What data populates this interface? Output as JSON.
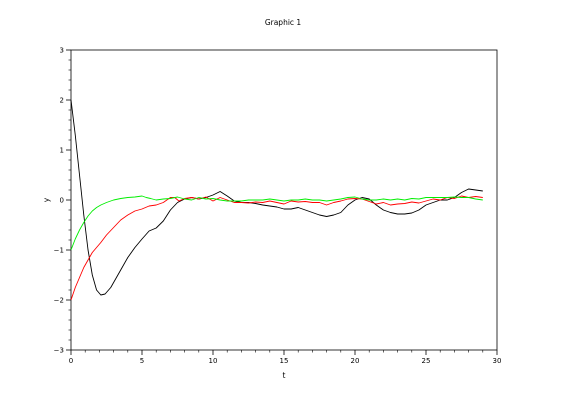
{
  "chart_data": {
    "type": "line",
    "title": "Graphic 1",
    "xlabel": "t",
    "ylabel": "y",
    "xlim": [
      0,
      30
    ],
    "ylim": [
      -3,
      3
    ],
    "xticks": [
      "0",
      "5",
      "10",
      "15",
      "20",
      "25",
      "30"
    ],
    "yticks": [
      "-3",
      "-2",
      "-1",
      "0",
      "1",
      "2",
      "3"
    ],
    "grid": false,
    "legend": "none",
    "series": [
      {
        "color": "#000000",
        "points": [
          [
            0,
            2.0
          ],
          [
            0.3,
            1.3
          ],
          [
            0.6,
            0.5
          ],
          [
            0.9,
            -0.3
          ],
          [
            1.2,
            -1.0
          ],
          [
            1.5,
            -1.5
          ],
          [
            1.8,
            -1.8
          ],
          [
            2.1,
            -1.9
          ],
          [
            2.4,
            -1.88
          ],
          [
            2.8,
            -1.75
          ],
          [
            3.2,
            -1.55
          ],
          [
            3.6,
            -1.35
          ],
          [
            4.0,
            -1.15
          ],
          [
            4.5,
            -0.95
          ],
          [
            5.0,
            -0.78
          ],
          [
            5.5,
            -0.62
          ],
          [
            6.0,
            -0.56
          ],
          [
            6.5,
            -0.42
          ],
          [
            7.0,
            -0.2
          ],
          [
            7.5,
            -0.05
          ],
          [
            8.0,
            0.02
          ],
          [
            8.5,
            0.05
          ],
          [
            9.0,
            0.02
          ],
          [
            9.5,
            0.05
          ],
          [
            10.0,
            0.1
          ],
          [
            10.5,
            0.17
          ],
          [
            11.0,
            0.08
          ],
          [
            11.5,
            -0.02
          ],
          [
            12.0,
            -0.05
          ],
          [
            12.5,
            -0.05
          ],
          [
            13.0,
            -0.07
          ],
          [
            13.5,
            -0.1
          ],
          [
            14.0,
            -0.12
          ],
          [
            14.5,
            -0.14
          ],
          [
            15.0,
            -0.18
          ],
          [
            15.5,
            -0.18
          ],
          [
            16.0,
            -0.15
          ],
          [
            16.5,
            -0.2
          ],
          [
            17.0,
            -0.25
          ],
          [
            17.5,
            -0.3
          ],
          [
            18.0,
            -0.33
          ],
          [
            18.5,
            -0.3
          ],
          [
            19.0,
            -0.25
          ],
          [
            19.5,
            -0.1
          ],
          [
            20.0,
            0.0
          ],
          [
            20.5,
            0.05
          ],
          [
            21.0,
            0.02
          ],
          [
            21.5,
            -0.1
          ],
          [
            22.0,
            -0.2
          ],
          [
            22.5,
            -0.25
          ],
          [
            23.0,
            -0.28
          ],
          [
            23.5,
            -0.28
          ],
          [
            24.0,
            -0.26
          ],
          [
            24.5,
            -0.2
          ],
          [
            25.0,
            -0.1
          ],
          [
            25.5,
            -0.05
          ],
          [
            26.0,
            0.0
          ],
          [
            26.5,
            0.0
          ],
          [
            27.0,
            0.05
          ],
          [
            27.5,
            0.15
          ],
          [
            28.0,
            0.22
          ],
          [
            28.5,
            0.2
          ],
          [
            29.0,
            0.18
          ]
        ]
      },
      {
        "color": "#ff0000",
        "points": [
          [
            0,
            -2.0
          ],
          [
            0.3,
            -1.75
          ],
          [
            0.6,
            -1.55
          ],
          [
            0.9,
            -1.35
          ],
          [
            1.2,
            -1.2
          ],
          [
            1.5,
            -1.05
          ],
          [
            1.8,
            -0.95
          ],
          [
            2.1,
            -0.85
          ],
          [
            2.5,
            -0.7
          ],
          [
            3.0,
            -0.55
          ],
          [
            3.5,
            -0.4
          ],
          [
            4.0,
            -0.3
          ],
          [
            4.5,
            -0.22
          ],
          [
            5.0,
            -0.18
          ],
          [
            5.5,
            -0.12
          ],
          [
            6.0,
            -0.1
          ],
          [
            6.5,
            -0.05
          ],
          [
            7.0,
            0.05
          ],
          [
            7.3,
            0.05
          ],
          [
            7.6,
            -0.02
          ],
          [
            8.0,
            0.03
          ],
          [
            8.5,
            0.05
          ],
          [
            9.0,
            0.02
          ],
          [
            9.5,
            0.06
          ],
          [
            10.0,
            -0.02
          ],
          [
            10.5,
            0.05
          ],
          [
            11.0,
            0.0
          ],
          [
            11.5,
            -0.05
          ],
          [
            12.0,
            -0.05
          ],
          [
            12.5,
            -0.06
          ],
          [
            13.0,
            -0.04
          ],
          [
            13.5,
            -0.05
          ],
          [
            14.0,
            -0.02
          ],
          [
            14.5,
            -0.05
          ],
          [
            15.0,
            -0.08
          ],
          [
            15.5,
            -0.02
          ],
          [
            16.0,
            -0.04
          ],
          [
            16.5,
            -0.03
          ],
          [
            17.0,
            -0.05
          ],
          [
            17.5,
            -0.05
          ],
          [
            18.0,
            -0.1
          ],
          [
            18.5,
            -0.05
          ],
          [
            19.0,
            -0.02
          ],
          [
            19.5,
            0.02
          ],
          [
            20.0,
            0.03
          ],
          [
            20.5,
            0.02
          ],
          [
            21.0,
            -0.03
          ],
          [
            21.5,
            -0.08
          ],
          [
            22.0,
            -0.05
          ],
          [
            22.5,
            -0.1
          ],
          [
            23.0,
            -0.08
          ],
          [
            23.5,
            -0.07
          ],
          [
            24.0,
            -0.04
          ],
          [
            24.5,
            -0.06
          ],
          [
            25.0,
            -0.02
          ],
          [
            25.5,
            0.02
          ],
          [
            26.0,
            0.0
          ],
          [
            26.5,
            0.05
          ],
          [
            27.0,
            0.03
          ],
          [
            27.5,
            0.08
          ],
          [
            28.0,
            0.05
          ],
          [
            28.5,
            0.07
          ],
          [
            29.0,
            0.05
          ]
        ]
      },
      {
        "color": "#00ee00",
        "points": [
          [
            0,
            -1.0
          ],
          [
            0.3,
            -0.78
          ],
          [
            0.6,
            -0.6
          ],
          [
            0.9,
            -0.45
          ],
          [
            1.2,
            -0.32
          ],
          [
            1.5,
            -0.22
          ],
          [
            1.8,
            -0.15
          ],
          [
            2.1,
            -0.1
          ],
          [
            2.5,
            -0.05
          ],
          [
            3.0,
            0.0
          ],
          [
            3.5,
            0.03
          ],
          [
            4.0,
            0.05
          ],
          [
            4.5,
            0.06
          ],
          [
            5.0,
            0.08
          ],
          [
            5.3,
            0.05
          ],
          [
            5.6,
            0.03
          ],
          [
            6.0,
            0.0
          ],
          [
            6.5,
            0.02
          ],
          [
            7.0,
            0.03
          ],
          [
            7.5,
            0.06
          ],
          [
            8.0,
            0.02
          ],
          [
            8.5,
            0.0
          ],
          [
            9.0,
            0.05
          ],
          [
            9.5,
            0.02
          ],
          [
            10.0,
            0.03
          ],
          [
            10.5,
            0.0
          ],
          [
            11.0,
            -0.02
          ],
          [
            11.5,
            -0.02
          ],
          [
            12.0,
            -0.02
          ],
          [
            12.5,
            0.0
          ],
          [
            13.0,
            0.0
          ],
          [
            13.5,
            0.0
          ],
          [
            14.0,
            0.02
          ],
          [
            14.5,
            0.0
          ],
          [
            15.0,
            -0.02
          ],
          [
            15.5,
            0.0
          ],
          [
            16.0,
            0.0
          ],
          [
            16.5,
            0.02
          ],
          [
            17.0,
            0.0
          ],
          [
            17.5,
            0.0
          ],
          [
            18.0,
            -0.02
          ],
          [
            18.5,
            0.0
          ],
          [
            19.0,
            0.02
          ],
          [
            19.5,
            0.05
          ],
          [
            20.0,
            0.06
          ],
          [
            20.5,
            0.02
          ],
          [
            21.0,
            0.0
          ],
          [
            21.5,
            0.0
          ],
          [
            22.0,
            0.02
          ],
          [
            22.5,
            0.0
          ],
          [
            23.0,
            0.02
          ],
          [
            23.5,
            0.0
          ],
          [
            24.0,
            0.03
          ],
          [
            24.5,
            0.02
          ],
          [
            25.0,
            0.05
          ],
          [
            25.5,
            0.05
          ],
          [
            26.0,
            0.05
          ],
          [
            26.5,
            0.05
          ],
          [
            27.0,
            0.06
          ],
          [
            27.5,
            0.05
          ],
          [
            28.0,
            0.05
          ],
          [
            28.5,
            0.02
          ],
          [
            29.0,
            0.0
          ]
        ]
      }
    ]
  }
}
